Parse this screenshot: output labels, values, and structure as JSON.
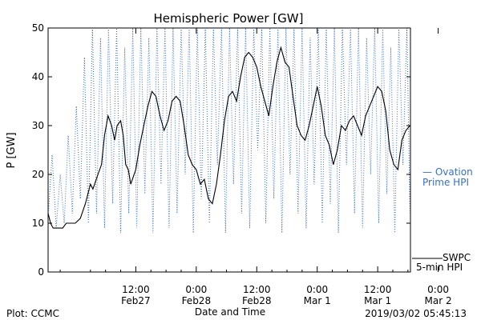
{
  "chart_data": {
    "type": "line",
    "title": "Hemispheric Power [GW]",
    "xlabel": "Date and Time",
    "ylabel": "P [GW]",
    "ylim": [
      0,
      50
    ],
    "yticks": [
      0,
      10,
      20,
      30,
      40,
      50
    ],
    "xticks": [
      {
        "time": "12:00",
        "date": "Feb27"
      },
      {
        "time": "0:00",
        "date": "Feb28"
      },
      {
        "time": "12:00",
        "date": "Feb28"
      },
      {
        "time": "0:00",
        "date": "Mar 1"
      },
      {
        "time": "12:00",
        "date": "Mar 1"
      },
      {
        "time": "0:00",
        "date": "Mar 2"
      }
    ],
    "x_range_hours": [
      -5.4,
      66.5
    ],
    "x_origin_label": "Feb27 0:00",
    "series": [
      {
        "name": "SWPC 5-min HPI",
        "color": "#000000",
        "style": "solid",
        "x": [
          -5.4,
          -4.9,
          -4.4,
          -3.5,
          -2.5,
          -1.8,
          -1.0,
          0.0,
          1.0,
          2.0,
          3.0,
          3.5,
          4.5,
          5.2,
          5.8,
          6.5,
          7.2,
          7.8,
          8.3,
          9.0,
          9.5,
          10.0,
          10.5,
          11.0,
          12.0,
          12.8,
          13.6,
          14.4,
          15.2,
          16.0,
          16.8,
          17.6,
          18.4,
          19.2,
          20.0,
          20.8,
          21.6,
          22.4,
          23.2,
          24.0,
          24.8,
          25.6,
          26.4,
          27.2,
          28.0,
          28.8,
          29.6,
          30.4,
          31.2,
          32.0,
          32.8,
          33.6,
          34.4,
          35.2,
          36.0,
          36.8,
          37.6,
          38.4,
          39.2,
          40.0,
          40.8,
          41.6,
          42.4,
          43.2,
          44.0,
          44.8,
          45.6,
          46.4,
          47.2,
          48.0,
          48.8,
          49.6,
          50.4,
          51.2,
          52.0,
          52.8,
          53.6,
          54.4,
          55.2,
          56.0,
          56.8,
          57.6,
          58.4,
          59.2,
          60.0,
          60.8,
          61.6,
          62.4,
          63.2,
          64.0,
          64.8,
          65.6,
          66.4
        ],
        "y": [
          12,
          10,
          9,
          9,
          9,
          10,
          10,
          10,
          11,
          14,
          18,
          17,
          20,
          22,
          28,
          32,
          30,
          27,
          30,
          31,
          28,
          22,
          21,
          18,
          21,
          26,
          30,
          34,
          37,
          36,
          32,
          29,
          31,
          35,
          36,
          35,
          30,
          24,
          22,
          21,
          18,
          19,
          15,
          14,
          18,
          24,
          31,
          36,
          37,
          35,
          40,
          44,
          45,
          44,
          42,
          38,
          35,
          32,
          38,
          43,
          46,
          43,
          42,
          36,
          30,
          28,
          27,
          30,
          34,
          38,
          34,
          28,
          26,
          22,
          25,
          30,
          29,
          31,
          32,
          30,
          28,
          32,
          34,
          36,
          38,
          37,
          33,
          25,
          22,
          21,
          27,
          29,
          30
        ],
        "unit_scale_note": ""
      },
      {
        "name": "- Ovation Prime HPI",
        "color": "#3b6fc4",
        "style": "dotted",
        "x": [
          -5.4,
          -4.6,
          -3.8,
          -3.0,
          -2.2,
          -1.4,
          -0.6,
          0.2,
          1.0,
          1.8,
          2.6,
          3.4,
          4.2,
          5.0,
          5.8,
          6.6,
          7.4,
          8.2,
          9.0,
          9.8,
          10.6,
          11.4,
          12.2,
          13.0,
          13.8,
          14.6,
          15.4,
          16.2,
          17.0,
          17.8,
          18.6,
          19.4,
          20.2,
          21.0,
          21.8,
          22.6,
          23.4,
          24.2,
          25.0,
          25.8,
          26.6,
          27.4,
          28.2,
          29.0,
          29.8,
          30.6,
          31.4,
          32.2,
          33.0,
          33.8,
          34.6,
          35.4,
          36.2,
          37.0,
          37.8,
          38.6,
          39.4,
          40.2,
          41.0,
          41.8,
          42.6,
          43.4,
          44.2,
          45.0,
          45.8,
          46.6,
          47.4,
          48.2,
          49.0,
          49.8,
          50.6,
          51.4,
          52.2,
          53.0,
          53.8,
          54.6,
          55.4,
          56.2,
          57.0,
          57.8,
          58.6,
          59.4,
          60.2,
          61.0,
          61.8,
          62.6,
          63.4,
          64.2,
          65.0,
          65.8,
          66.4
        ],
        "y": [
          11,
          24,
          9,
          20,
          10,
          28,
          12,
          34,
          15,
          44,
          10,
          50,
          12,
          48,
          9,
          50,
          14,
          50,
          8,
          46,
          12,
          50,
          9,
          50,
          16,
          48,
          8,
          50,
          18,
          50,
          9,
          50,
          12,
          50,
          20,
          50,
          8,
          50,
          15,
          50,
          10,
          50,
          22,
          50,
          8,
          50,
          18,
          50,
          12,
          50,
          9,
          50,
          25,
          50,
          10,
          50,
          15,
          50,
          8,
          50,
          20,
          50,
          12,
          50,
          9,
          48,
          18,
          50,
          10,
          50,
          14,
          50,
          8,
          50,
          22,
          50,
          12,
          50,
          9,
          48,
          20,
          50,
          10,
          50,
          16,
          46,
          8,
          50,
          22,
          50,
          12
        ],
        "unit_scale_note": ""
      }
    ],
    "legend": {
      "placement": "right",
      "ovation_line1": "— Ovation",
      "ovation_line2": "Prime HPI",
      "swpc_line1": "SWPC",
      "swpc_line2": "5-min HPI"
    },
    "footer_left": "Plot: CCMC",
    "footer_right": "2019/03/02 05:45:13",
    "colors": {
      "swpc": "#000000",
      "ovation": "#3b6fc4"
    }
  }
}
